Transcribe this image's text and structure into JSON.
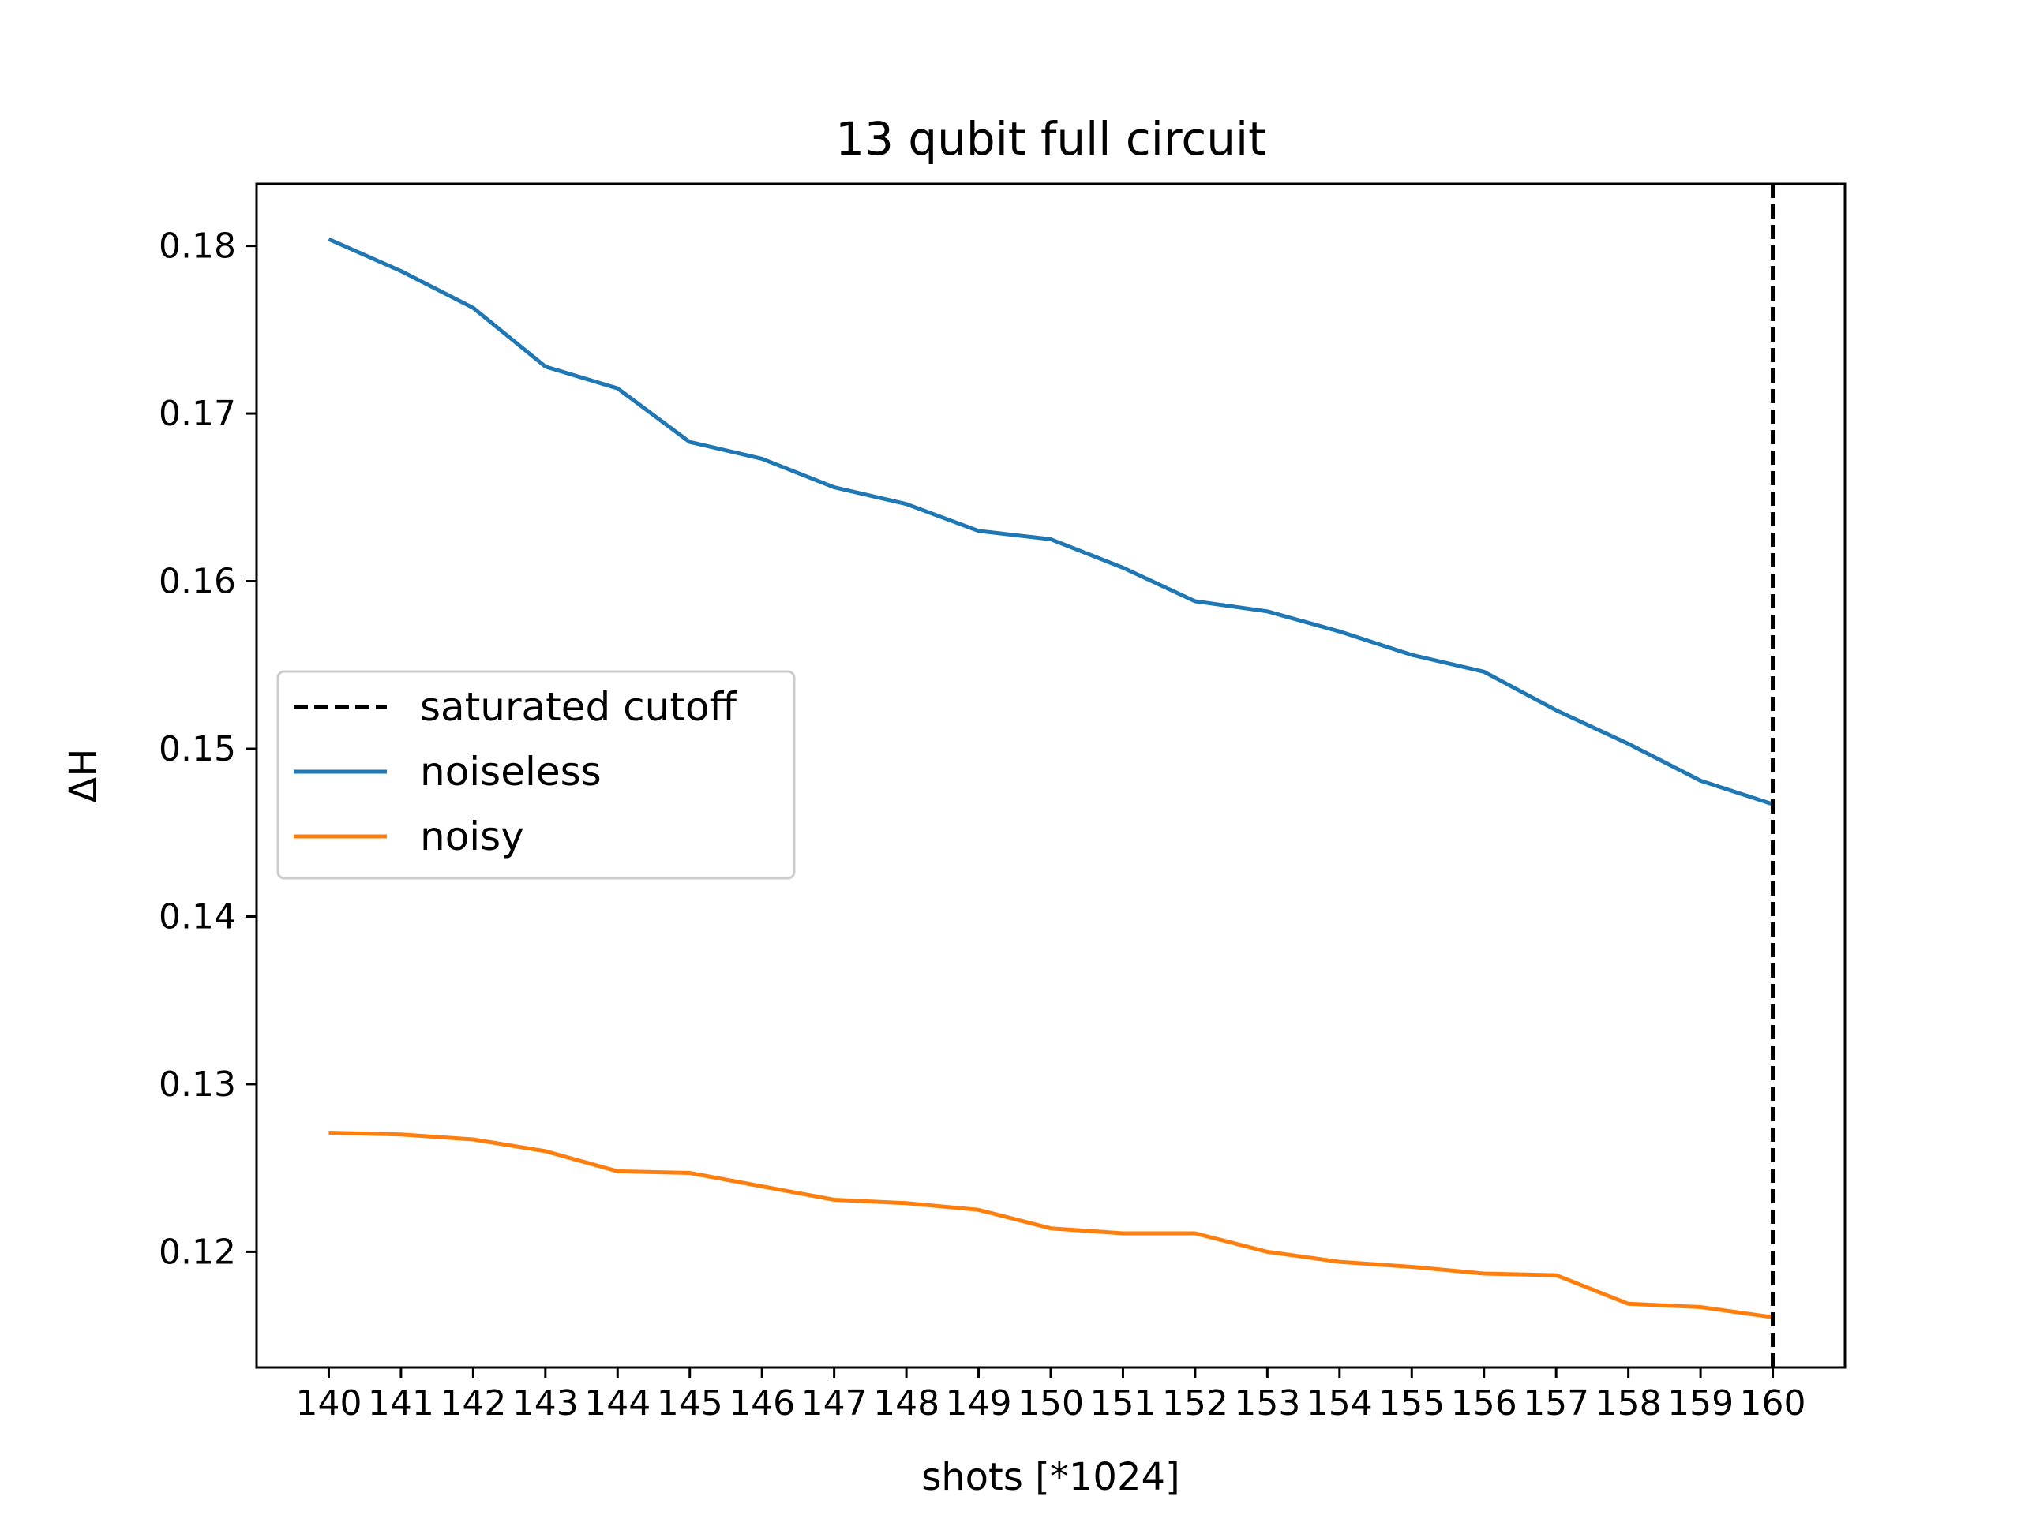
{
  "chart_data": {
    "type": "line",
    "title": "13 qubit full circuit",
    "xlabel": "shots [*1024]",
    "ylabel": "ΔH",
    "x": [
      140,
      141,
      142,
      143,
      144,
      145,
      146,
      147,
      148,
      149,
      150,
      151,
      152,
      153,
      154,
      155,
      156,
      157,
      158,
      159,
      160
    ],
    "xticks": [
      "140",
      "141",
      "142",
      "143",
      "144",
      "145",
      "146",
      "147",
      "148",
      "149",
      "150",
      "151",
      "152",
      "153",
      "154",
      "155",
      "156",
      "157",
      "158",
      "159",
      "160"
    ],
    "yticks": [
      "0.12",
      "0.13",
      "0.14",
      "0.15",
      "0.16",
      "0.17",
      "0.18"
    ],
    "ytick_values": [
      0.12,
      0.13,
      0.14,
      0.15,
      0.16,
      0.17,
      0.18
    ],
    "xlim": [
      139.0,
      161.0
    ],
    "ylim": [
      0.1131,
      0.1837
    ],
    "grid": false,
    "legend_position": "center-left",
    "cutoff": {
      "name": "saturated cutoff",
      "x": 160,
      "color": "#000000",
      "style": "dashed"
    },
    "series": [
      {
        "name": "noiseless",
        "color": "#1f77b4",
        "values": [
          0.1804,
          0.1785,
          0.1763,
          0.1728,
          0.1715,
          0.1683,
          0.1673,
          0.1656,
          0.1646,
          0.163,
          0.1625,
          0.1608,
          0.1588,
          0.1582,
          0.157,
          0.1556,
          0.1546,
          0.1523,
          0.1503,
          0.1481,
          0.1467
        ]
      },
      {
        "name": "noisy",
        "color": "#ff7f0e",
        "values": [
          0.1271,
          0.127,
          0.1267,
          0.126,
          0.1248,
          0.1247,
          0.1239,
          0.1231,
          0.1229,
          0.1225,
          0.1214,
          0.1211,
          0.1211,
          0.12,
          0.1194,
          0.1191,
          0.1187,
          0.1186,
          0.1169,
          0.1167,
          0.1161
        ]
      }
    ]
  }
}
